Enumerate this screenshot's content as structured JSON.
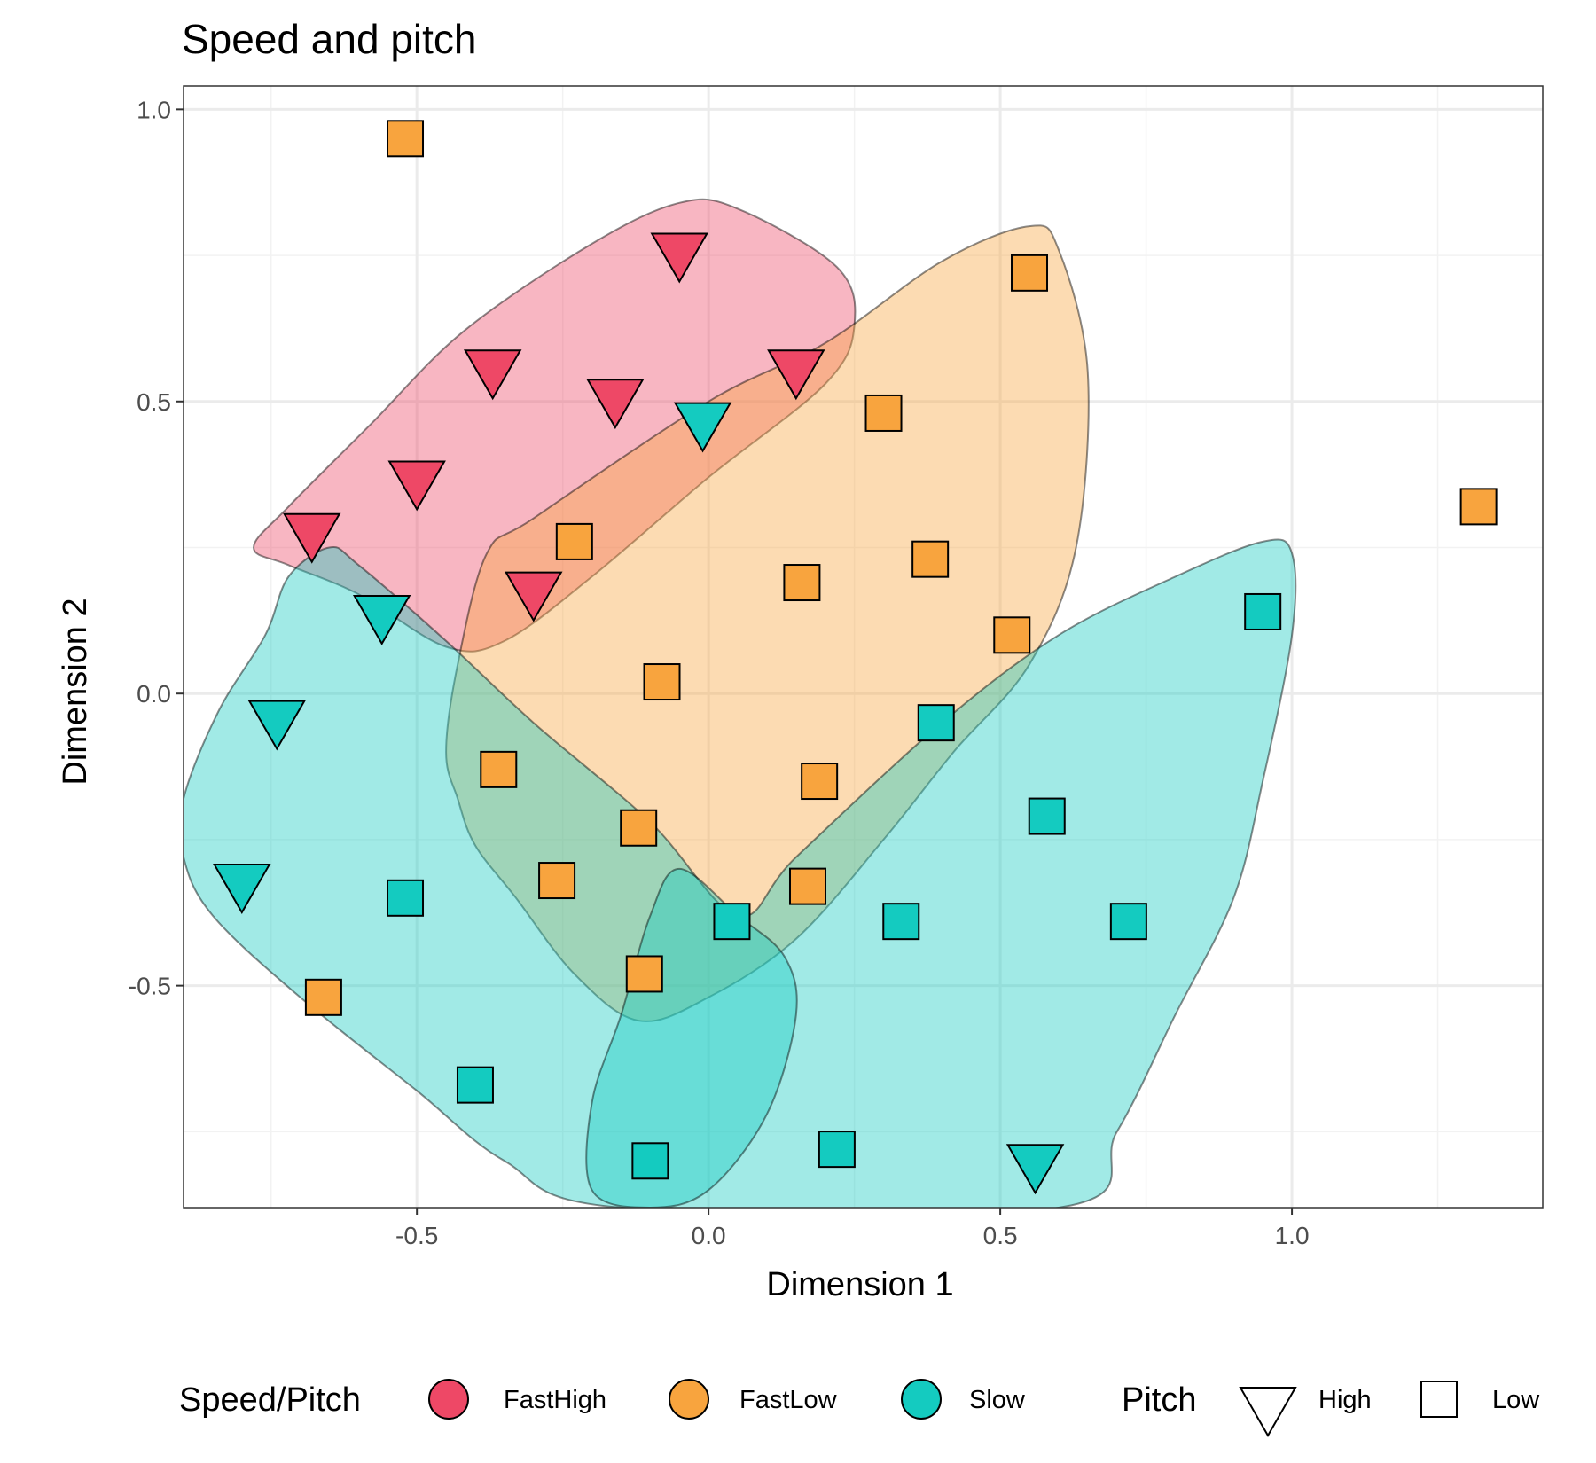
{
  "chart_data": {
    "type": "scatter",
    "title": "Speed and pitch",
    "xlabel": "Dimension 1",
    "ylabel": "Dimension 2",
    "xlim": [
      -0.9,
      1.43
    ],
    "ylim": [
      -0.88,
      1.04
    ],
    "xticks": [
      -0.5,
      0.0,
      0.5,
      1.0
    ],
    "xtick_labels": [
      "-0.5",
      "0.0",
      "0.5",
      "1.0"
    ],
    "yticks": [
      -0.5,
      0.0,
      0.5,
      1.0
    ],
    "ytick_labels": [
      "-0.5",
      "0.0",
      "0.5",
      "1.0"
    ],
    "grid": true,
    "legend_position": "bottom",
    "colors": {
      "FastHigh": "#EE4866",
      "FastLow": "#F8A43E",
      "Slow": "#14CBC0"
    },
    "legend": {
      "fill_title": "Speed/Pitch",
      "fill_entries": [
        "FastHigh",
        "FastLow",
        "Slow"
      ],
      "shape_title": "Pitch",
      "shape_entries": [
        "High",
        "Low"
      ]
    },
    "series": [
      {
        "name": "FastHigh",
        "points": [
          {
            "x": -0.05,
            "y": 0.76,
            "pitch": "High"
          },
          {
            "x": -0.37,
            "y": 0.56,
            "pitch": "High"
          },
          {
            "x": -0.16,
            "y": 0.51,
            "pitch": "High"
          },
          {
            "x": 0.15,
            "y": 0.56,
            "pitch": "High"
          },
          {
            "x": -0.5,
            "y": 0.37,
            "pitch": "High"
          },
          {
            "x": -0.68,
            "y": 0.28,
            "pitch": "High"
          },
          {
            "x": -0.3,
            "y": 0.18,
            "pitch": "High"
          }
        ],
        "hull": [
          [
            -0.78,
            0.25
          ],
          [
            -0.72,
            0.32
          ],
          [
            -0.58,
            0.46
          ],
          [
            -0.42,
            0.62
          ],
          [
            -0.2,
            0.77
          ],
          [
            -0.05,
            0.84
          ],
          [
            0.05,
            0.83
          ],
          [
            0.22,
            0.73
          ],
          [
            0.25,
            0.63
          ],
          [
            0.2,
            0.53
          ],
          [
            0.0,
            0.37
          ],
          [
            -0.2,
            0.2
          ],
          [
            -0.35,
            0.09
          ],
          [
            -0.45,
            0.08
          ],
          [
            -0.6,
            0.17
          ],
          [
            -0.72,
            0.22
          ]
        ]
      },
      {
        "name": "FastLow",
        "points": [
          {
            "x": -0.52,
            "y": 0.95,
            "pitch": "Low"
          },
          {
            "x": 0.55,
            "y": 0.72,
            "pitch": "Low"
          },
          {
            "x": 0.3,
            "y": 0.48,
            "pitch": "Low"
          },
          {
            "x": 1.32,
            "y": 0.32,
            "pitch": "Low"
          },
          {
            "x": -0.23,
            "y": 0.26,
            "pitch": "Low"
          },
          {
            "x": 0.38,
            "y": 0.23,
            "pitch": "Low"
          },
          {
            "x": 0.16,
            "y": 0.19,
            "pitch": "Low"
          },
          {
            "x": 0.52,
            "y": 0.1,
            "pitch": "Low"
          },
          {
            "x": -0.08,
            "y": 0.02,
            "pitch": "Low"
          },
          {
            "x": -0.36,
            "y": -0.13,
            "pitch": "Low"
          },
          {
            "x": 0.19,
            "y": -0.15,
            "pitch": "Low"
          },
          {
            "x": -0.12,
            "y": -0.23,
            "pitch": "Low"
          },
          {
            "x": -0.26,
            "y": -0.32,
            "pitch": "Low"
          },
          {
            "x": 0.17,
            "y": -0.33,
            "pitch": "Low"
          },
          {
            "x": -0.11,
            "y": -0.48,
            "pitch": "Low"
          },
          {
            "x": -0.66,
            "y": -0.52,
            "pitch": "Low"
          }
        ],
        "hull": [
          [
            -0.43,
            -0.18
          ],
          [
            -0.4,
            -0.26
          ],
          [
            -0.33,
            -0.35
          ],
          [
            -0.23,
            -0.48
          ],
          [
            -0.12,
            -0.56
          ],
          [
            0.0,
            -0.52
          ],
          [
            0.15,
            -0.42
          ],
          [
            0.3,
            -0.25
          ],
          [
            0.42,
            -0.1
          ],
          [
            0.55,
            0.05
          ],
          [
            0.63,
            0.25
          ],
          [
            0.65,
            0.55
          ],
          [
            0.6,
            0.76
          ],
          [
            0.55,
            0.8
          ],
          [
            0.4,
            0.74
          ],
          [
            0.2,
            0.6
          ],
          [
            0.0,
            0.5
          ],
          [
            -0.3,
            0.3
          ],
          [
            -0.38,
            0.24
          ],
          [
            -0.43,
            0.05
          ],
          [
            -0.45,
            -0.1
          ]
        ]
      },
      {
        "name": "Slow",
        "points": [
          {
            "x": -0.01,
            "y": 0.47,
            "pitch": "High"
          },
          {
            "x": -0.56,
            "y": 0.14,
            "pitch": "High"
          },
          {
            "x": 0.95,
            "y": 0.14,
            "pitch": "Low"
          },
          {
            "x": -0.74,
            "y": -0.04,
            "pitch": "High"
          },
          {
            "x": 0.39,
            "y": -0.05,
            "pitch": "Low"
          },
          {
            "x": 0.58,
            "y": -0.21,
            "pitch": "Low"
          },
          {
            "x": -0.8,
            "y": -0.32,
            "pitch": "High"
          },
          {
            "x": -0.52,
            "y": -0.35,
            "pitch": "Low"
          },
          {
            "x": 0.04,
            "y": -0.39,
            "pitch": "Low"
          },
          {
            "x": 0.33,
            "y": -0.39,
            "pitch": "Low"
          },
          {
            "x": 0.72,
            "y": -0.39,
            "pitch": "Low"
          },
          {
            "x": -0.4,
            "y": -0.67,
            "pitch": "Low"
          },
          {
            "x": -0.1,
            "y": -0.8,
            "pitch": "Low"
          },
          {
            "x": 0.22,
            "y": -0.78,
            "pitch": "Low"
          },
          {
            "x": 0.56,
            "y": -0.8,
            "pitch": "High"
          }
        ],
        "hull": [
          [
            -0.9,
            -0.18
          ],
          [
            -0.84,
            -0.03
          ],
          [
            -0.76,
            0.1
          ],
          [
            -0.72,
            0.2
          ],
          [
            -0.65,
            0.25
          ],
          [
            -0.6,
            0.22
          ],
          [
            -0.45,
            0.09
          ],
          [
            -0.3,
            -0.05
          ],
          [
            -0.1,
            -0.22
          ],
          [
            0.05,
            -0.38
          ],
          [
            0.15,
            -0.28
          ],
          [
            0.4,
            -0.05
          ],
          [
            0.6,
            0.1
          ],
          [
            0.8,
            0.2
          ],
          [
            0.95,
            0.26
          ],
          [
            1.0,
            0.24
          ],
          [
            1.0,
            0.1
          ],
          [
            0.95,
            -0.15
          ],
          [
            0.9,
            -0.35
          ],
          [
            0.8,
            -0.55
          ],
          [
            0.7,
            -0.75
          ],
          [
            0.6,
            -0.88
          ],
          [
            -0.15,
            -0.88
          ],
          [
            -0.35,
            -0.8
          ],
          [
            -0.5,
            -0.68
          ],
          [
            -0.7,
            -0.52
          ],
          [
            -0.85,
            -0.38
          ],
          [
            -0.9,
            -0.28
          ]
        ]
      },
      {
        "name": "Slow",
        "points": [],
        "hull": [
          [
            0.05,
            -0.38
          ],
          [
            0.13,
            -0.45
          ],
          [
            0.15,
            -0.55
          ],
          [
            0.1,
            -0.72
          ],
          [
            0.0,
            -0.85
          ],
          [
            -0.1,
            -0.88
          ],
          [
            -0.2,
            -0.85
          ],
          [
            -0.2,
            -0.7
          ],
          [
            -0.15,
            -0.55
          ],
          [
            -0.1,
            -0.38
          ],
          [
            -0.05,
            -0.3
          ]
        ]
      }
    ]
  }
}
